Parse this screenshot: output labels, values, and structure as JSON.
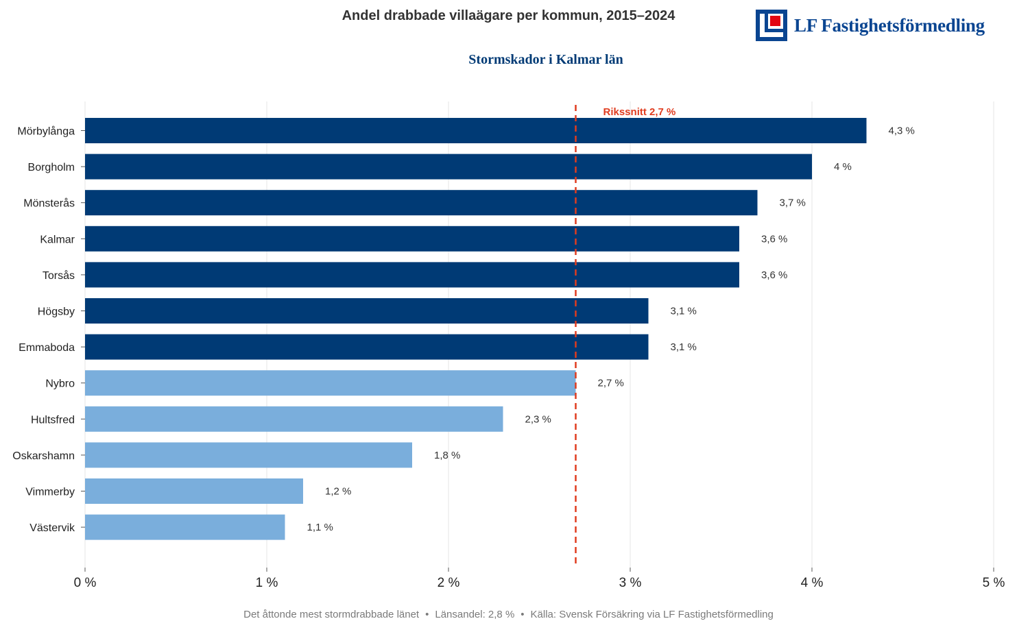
{
  "logo": {
    "text": "LF Fastighetsförmedling",
    "color": "#0a4591",
    "accent": "#e30613"
  },
  "chart_data": {
    "type": "bar",
    "orientation": "horizontal",
    "title": "Andel drabbade villaägare per kommun, 2015–2024",
    "subtitle": "Stormskador i Kalmar län",
    "categories": [
      "Mörbylånga",
      "Borgholm",
      "Mönsterås",
      "Kalmar",
      "Torsås",
      "Högsby",
      "Emmaboda",
      "Nybro",
      "Hultsfred",
      "Oskarshamn",
      "Vimmerby",
      "Västervik"
    ],
    "values": [
      4.3,
      4.0,
      3.7,
      3.6,
      3.6,
      3.1,
      3.1,
      2.7,
      2.3,
      1.8,
      1.2,
      1.1
    ],
    "value_labels": [
      "4,3 %",
      "4 %",
      "3,7 %",
      "3,6 %",
      "3,6 %",
      "3,1 %",
      "3,1 %",
      "2,7 %",
      "2,3 %",
      "1,8 %",
      "1,2 %",
      "1,1 %"
    ],
    "above_average_color": "#003a75",
    "below_average_color": "#7aaedc",
    "xlim": [
      0,
      5
    ],
    "xticks": [
      0,
      1,
      2,
      3,
      4,
      5
    ],
    "xtick_labels": [
      "0 %",
      "1 %",
      "2 %",
      "3 %",
      "4 %",
      "5 %"
    ],
    "grid": true,
    "reference_line": {
      "value": 2.7,
      "label": "Rikssnitt 2,7 %",
      "color": "#e03c1f",
      "style": "dashed"
    }
  },
  "footer": {
    "items": [
      "Det åttonde mest stormdrabbade länet",
      "Länsandel: 2,8 %",
      "Källa: Svensk Försäkring via LF Fastighetsförmedling"
    ],
    "separator": "•"
  },
  "colors": {
    "title": "#333333",
    "subtitle": "#003a75",
    "axis_text": "#222222",
    "value_text": "#333333",
    "grid": "#e6e6e6",
    "footer": "#7a7a7a"
  }
}
